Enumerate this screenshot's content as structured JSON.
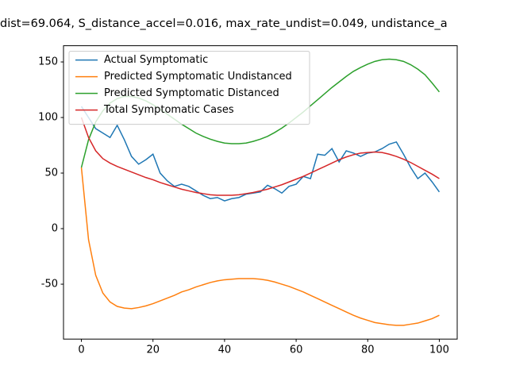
{
  "chart_data": {
    "type": "line",
    "title": "dist=69.064, S_distance_accel=0.016, max_rate_undist=0.049, undistance_a",
    "x": [
      0,
      2,
      4,
      6,
      8,
      10,
      12,
      14,
      16,
      18,
      20,
      22,
      24,
      26,
      28,
      30,
      32,
      34,
      36,
      38,
      40,
      42,
      44,
      46,
      48,
      50,
      52,
      54,
      56,
      58,
      60,
      62,
      64,
      66,
      68,
      70,
      72,
      74,
      76,
      78,
      80,
      82,
      84,
      86,
      88,
      90,
      92,
      94,
      96,
      98,
      100
    ],
    "series": [
      {
        "name": "Actual Symptomatic",
        "color": "#1f77b4",
        "values": [
          110,
          100,
          90,
          86,
          82,
          93,
          80,
          65,
          58,
          62,
          67,
          50,
          43,
          38,
          40,
          38,
          34,
          30,
          27,
          28,
          25,
          27,
          28,
          31,
          32,
          33,
          39,
          36,
          32,
          38,
          40,
          47,
          45,
          67,
          66,
          72,
          60,
          70,
          68,
          65,
          68,
          69,
          72,
          76,
          78,
          67,
          55,
          45,
          50,
          42,
          33
        ]
      },
      {
        "name": "Predicted Symptomatic Undistanced",
        "color": "#ff7f0e",
        "values": [
          55,
          -10,
          -42,
          -58,
          -66,
          -70,
          -71.5,
          -72,
          -71,
          -69.5,
          -67.5,
          -65,
          -62.5,
          -60,
          -57,
          -55,
          -52.5,
          -50.5,
          -48.5,
          -47,
          -46,
          -45.5,
          -45,
          -45,
          -45,
          -45.5,
          -46.5,
          -48,
          -50,
          -52,
          -54.5,
          -57,
          -60,
          -63,
          -66,
          -69,
          -72,
          -75,
          -78,
          -80.5,
          -82.5,
          -84.5,
          -85.5,
          -86.5,
          -87,
          -87,
          -86,
          -85,
          -83,
          -81,
          -78
        ]
      },
      {
        "name": "Predicted Symptomatic Distanced",
        "color": "#2ca02c",
        "values": [
          55,
          80,
          96,
          106,
          113,
          117,
          119,
          119,
          117.5,
          115,
          111.5,
          107.5,
          103,
          98.5,
          94,
          90,
          86,
          83,
          80.5,
          78.5,
          77,
          76.5,
          76.5,
          77,
          78.5,
          80.5,
          83,
          86.5,
          90.5,
          95,
          100,
          105,
          110.5,
          116,
          121.5,
          127,
          132,
          137,
          141.5,
          145,
          148,
          150.5,
          152,
          152.5,
          152,
          150.5,
          147.5,
          143.5,
          138.5,
          131,
          123
        ]
      },
      {
        "name": "Total Symptomatic Cases",
        "color": "#d62728",
        "values": [
          100,
          82,
          70,
          63,
          59,
          56,
          53.5,
          51,
          48.5,
          46,
          44,
          41.5,
          39.5,
          37.5,
          35.5,
          34,
          32.5,
          31.5,
          30.5,
          30,
          30,
          30,
          30.5,
          31.5,
          32.5,
          34,
          35.5,
          37.5,
          39.5,
          42,
          44.5,
          47,
          50,
          53,
          56,
          59,
          62,
          64.5,
          66.5,
          68,
          68.5,
          69,
          68.5,
          67,
          65,
          62.5,
          59.5,
          56,
          52.5,
          49,
          45
        ]
      }
    ],
    "xlim": [
      -5,
      105
    ],
    "ylim": [
      -99.4,
      164.6
    ],
    "xticks": [
      0,
      20,
      40,
      60,
      80,
      100
    ],
    "yticks": [
      -50,
      0,
      50,
      100,
      150
    ],
    "legend": "upper left"
  }
}
